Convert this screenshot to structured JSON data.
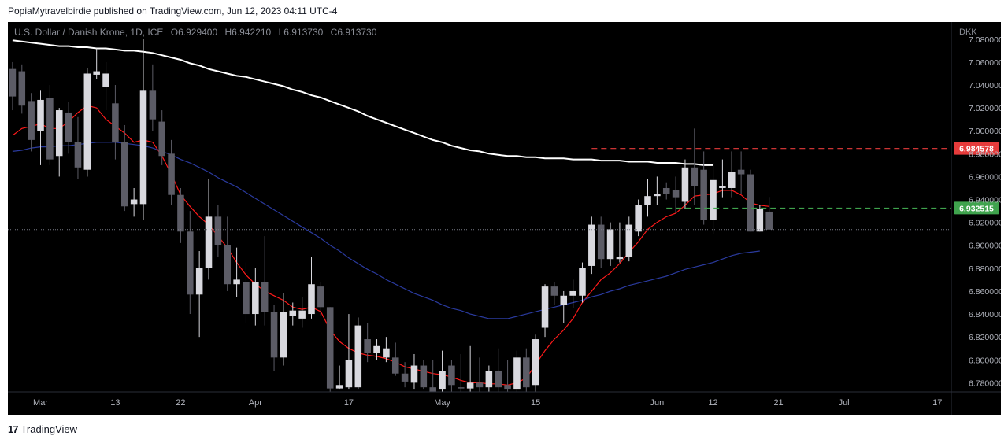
{
  "header": {
    "text": "PopiaMytravelbirdie published on TradingView.com, Jun 12, 2023 04:11 UTC-4"
  },
  "legend": {
    "symbol": "U.S. Dollar / Danish Krone, 1D, ICE",
    "o_label": "O",
    "o": "6.929400",
    "h_label": "H",
    "h": "6.942210",
    "l_label": "L",
    "l": "6.913730",
    "c_label": "C",
    "c": "6.913730"
  },
  "footer": {
    "logo_mark": "17",
    "brand": "TradingView"
  },
  "colors": {
    "background": "#000000",
    "bull": "#d9d9df",
    "bear": "#5c5c66",
    "sma_white": "#ffffff",
    "sma_red": "#ff1a1a",
    "sma_blue": "#2a3a9e",
    "resistance": "#e63b3b",
    "support": "#3fa34d"
  },
  "chart_data": {
    "type": "candlestick",
    "currency_label": "DKK",
    "y_ticks": [
      "7.080000",
      "7.060000",
      "7.040000",
      "7.020000",
      "7.000000",
      "6.980000",
      "6.960000",
      "6.940000",
      "6.920000",
      "6.900000",
      "6.880000",
      "6.860000",
      "6.840000",
      "6.820000",
      "6.800000",
      "6.780000"
    ],
    "ylim": [
      6.772,
      7.095
    ],
    "x_ticks": [
      {
        "label": "Mar",
        "index": 3
      },
      {
        "label": "13",
        "index": 11
      },
      {
        "label": "22",
        "index": 18
      },
      {
        "label": "Apr",
        "index": 26
      },
      {
        "label": "17",
        "index": 36
      },
      {
        "label": "May",
        "index": 46
      },
      {
        "label": "15",
        "index": 56
      },
      {
        "label": "Jun",
        "index": 69
      },
      {
        "label": "12",
        "index": 75
      },
      {
        "label": "21",
        "index": 82
      },
      {
        "label": "Jul",
        "index": 89
      },
      {
        "label": "17",
        "index": 99
      }
    ],
    "x_slots": 101,
    "candles": [
      {
        "o": 7.054,
        "h": 7.06,
        "l": 7.018,
        "c": 7.03
      },
      {
        "o": 7.052,
        "h": 7.058,
        "l": 7.015,
        "c": 7.022
      },
      {
        "o": 7.026,
        "h": 7.033,
        "l": 6.982,
        "c": 6.992
      },
      {
        "o": 7.0,
        "h": 7.035,
        "l": 6.97,
        "c": 7.027
      },
      {
        "o": 7.029,
        "h": 7.04,
        "l": 6.97,
        "c": 6.975
      },
      {
        "o": 6.978,
        "h": 7.02,
        "l": 6.96,
        "c": 7.018
      },
      {
        "o": 7.016,
        "h": 7.025,
        "l": 6.98,
        "c": 6.99
      },
      {
        "o": 6.99,
        "h": 7.012,
        "l": 6.958,
        "c": 6.968
      },
      {
        "o": 6.966,
        "h": 7.055,
        "l": 6.96,
        "c": 7.05
      },
      {
        "o": 7.049,
        "h": 7.072,
        "l": 7.045,
        "c": 7.052
      },
      {
        "o": 7.038,
        "h": 7.06,
        "l": 7.018,
        "c": 7.05
      },
      {
        "o": 7.024,
        "h": 7.04,
        "l": 6.975,
        "c": 6.99
      },
      {
        "o": 6.99,
        "h": 7.005,
        "l": 6.93,
        "c": 6.934
      },
      {
        "o": 6.936,
        "h": 6.95,
        "l": 6.925,
        "c": 6.94
      },
      {
        "o": 6.936,
        "h": 7.08,
        "l": 6.922,
        "c": 7.035
      },
      {
        "o": 7.035,
        "h": 7.058,
        "l": 7.0,
        "c": 7.01
      },
      {
        "o": 7.008,
        "h": 7.018,
        "l": 6.97,
        "c": 6.978
      },
      {
        "o": 6.98,
        "h": 6.992,
        "l": 6.935,
        "c": 6.944
      },
      {
        "o": 6.944,
        "h": 6.95,
        "l": 6.902,
        "c": 6.912
      },
      {
        "o": 6.912,
        "h": 6.93,
        "l": 6.84,
        "c": 6.857
      },
      {
        "o": 6.857,
        "h": 6.895,
        "l": 6.82,
        "c": 6.88
      },
      {
        "o": 6.88,
        "h": 6.958,
        "l": 6.87,
        "c": 6.925
      },
      {
        "o": 6.925,
        "h": 6.935,
        "l": 6.89,
        "c": 6.9
      },
      {
        "o": 6.9,
        "h": 6.925,
        "l": 6.86,
        "c": 6.866
      },
      {
        "o": 6.866,
        "h": 6.898,
        "l": 6.855,
        "c": 6.87
      },
      {
        "o": 6.868,
        "h": 6.885,
        "l": 6.832,
        "c": 6.84
      },
      {
        "o": 6.84,
        "h": 6.88,
        "l": 6.83,
        "c": 6.868
      },
      {
        "o": 6.868,
        "h": 6.908,
        "l": 6.83,
        "c": 6.842
      },
      {
        "o": 6.842,
        "h": 6.848,
        "l": 6.79,
        "c": 6.802
      },
      {
        "o": 6.802,
        "h": 6.858,
        "l": 6.795,
        "c": 6.842
      },
      {
        "o": 6.838,
        "h": 6.85,
        "l": 6.83,
        "c": 6.843
      },
      {
        "o": 6.836,
        "h": 6.855,
        "l": 6.828,
        "c": 6.843
      },
      {
        "o": 6.84,
        "h": 6.89,
        "l": 6.836,
        "c": 6.866
      },
      {
        "o": 6.864,
        "h": 6.868,
        "l": 6.838,
        "c": 6.846
      },
      {
        "o": 6.846,
        "h": 6.846,
        "l": 6.772,
        "c": 6.775
      },
      {
        "o": 6.775,
        "h": 6.795,
        "l": 6.774,
        "c": 6.778
      },
      {
        "o": 6.776,
        "h": 6.84,
        "l": 6.774,
        "c": 6.8
      },
      {
        "o": 6.776,
        "h": 6.837,
        "l": 6.774,
        "c": 6.83
      },
      {
        "o": 6.818,
        "h": 6.832,
        "l": 6.798,
        "c": 6.806
      },
      {
        "o": 6.806,
        "h": 6.818,
        "l": 6.8,
        "c": 6.812
      },
      {
        "o": 6.802,
        "h": 6.82,
        "l": 6.798,
        "c": 6.81
      },
      {
        "o": 6.802,
        "h": 6.815,
        "l": 6.786,
        "c": 6.788
      },
      {
        "o": 6.788,
        "h": 6.798,
        "l": 6.776,
        "c": 6.781
      },
      {
        "o": 6.78,
        "h": 6.805,
        "l": 6.774,
        "c": 6.795
      },
      {
        "o": 6.795,
        "h": 6.8,
        "l": 6.774,
        "c": 6.776
      },
      {
        "o": 6.776,
        "h": 6.8,
        "l": 6.772,
        "c": 6.772
      },
      {
        "o": 6.774,
        "h": 6.808,
        "l": 6.772,
        "c": 6.79
      },
      {
        "o": 6.795,
        "h": 6.8,
        "l": 6.772,
        "c": 6.778
      },
      {
        "o": 6.776,
        "h": 6.805,
        "l": 6.772,
        "c": 6.775
      },
      {
        "o": 6.775,
        "h": 6.812,
        "l": 6.772,
        "c": 6.78
      },
      {
        "o": 6.78,
        "h": 6.802,
        "l": 6.772,
        "c": 6.776
      },
      {
        "o": 6.776,
        "h": 6.795,
        "l": 6.772,
        "c": 6.79
      },
      {
        "o": 6.79,
        "h": 6.81,
        "l": 6.772,
        "c": 6.776
      },
      {
        "o": 6.778,
        "h": 6.8,
        "l": 6.772,
        "c": 6.774
      },
      {
        "o": 6.774,
        "h": 6.808,
        "l": 6.772,
        "c": 6.802
      },
      {
        "o": 6.802,
        "h": 6.81,
        "l": 6.772,
        "c": 6.776
      },
      {
        "o": 6.778,
        "h": 6.822,
        "l": 6.772,
        "c": 6.818
      },
      {
        "o": 6.828,
        "h": 6.866,
        "l": 6.82,
        "c": 6.864
      },
      {
        "o": 6.864,
        "h": 6.868,
        "l": 6.848,
        "c": 6.856
      },
      {
        "o": 6.848,
        "h": 6.86,
        "l": 6.832,
        "c": 6.856
      },
      {
        "o": 6.856,
        "h": 6.87,
        "l": 6.845,
        "c": 6.86
      },
      {
        "o": 6.856,
        "h": 6.885,
        "l": 6.85,
        "c": 6.88
      },
      {
        "o": 6.882,
        "h": 6.925,
        "l": 6.875,
        "c": 6.918
      },
      {
        "o": 6.918,
        "h": 6.925,
        "l": 6.88,
        "c": 6.888
      },
      {
        "o": 6.888,
        "h": 6.92,
        "l": 6.882,
        "c": 6.914
      },
      {
        "o": 6.888,
        "h": 6.92,
        "l": 6.885,
        "c": 6.89
      },
      {
        "o": 6.89,
        "h": 6.925,
        "l": 6.886,
        "c": 6.918
      },
      {
        "o": 6.912,
        "h": 6.94,
        "l": 6.908,
        "c": 6.935
      },
      {
        "o": 6.935,
        "h": 6.958,
        "l": 6.925,
        "c": 6.943
      },
      {
        "o": 6.943,
        "h": 6.96,
        "l": 6.935,
        "c": 6.945
      },
      {
        "o": 6.95,
        "h": 6.955,
        "l": 6.94,
        "c": 6.945
      },
      {
        "o": 6.948,
        "h": 6.96,
        "l": 6.928,
        "c": 6.942
      },
      {
        "o": 6.938,
        "h": 6.975,
        "l": 6.932,
        "c": 6.968
      },
      {
        "o": 6.968,
        "h": 7.002,
        "l": 6.935,
        "c": 6.952
      },
      {
        "o": 6.966,
        "h": 6.982,
        "l": 6.918,
        "c": 6.922
      },
      {
        "o": 6.922,
        "h": 6.972,
        "l": 6.91,
        "c": 6.957
      },
      {
        "o": 6.95,
        "h": 6.975,
        "l": 6.942,
        "c": 6.952
      },
      {
        "o": 6.95,
        "h": 6.982,
        "l": 6.942,
        "c": 6.964
      },
      {
        "o": 6.966,
        "h": 6.982,
        "l": 6.945,
        "c": 6.962
      },
      {
        "o": 6.962,
        "h": 6.966,
        "l": 6.912,
        "c": 6.912
      },
      {
        "o": 6.912,
        "h": 6.935,
        "l": 6.912,
        "c": 6.932
      },
      {
        "o": 6.9294,
        "h": 6.94221,
        "l": 6.91373,
        "c": 6.91373
      }
    ],
    "moving_averages": [
      {
        "color_key": "sma_white",
        "values": [
          7.079,
          7.078,
          7.077,
          7.076,
          7.075,
          7.074,
          7.074,
          7.073,
          7.073,
          7.072,
          7.072,
          7.071,
          7.07,
          7.07,
          7.069,
          7.068,
          7.066,
          7.064,
          7.062,
          7.059,
          7.057,
          7.054,
          7.052,
          7.05,
          7.048,
          7.047,
          7.045,
          7.043,
          7.041,
          7.039,
          7.036,
          7.034,
          7.031,
          7.029,
          7.026,
          7.023,
          7.02,
          7.017,
          7.013,
          7.01,
          7.007,
          7.004,
          7.001,
          6.998,
          6.995,
          6.992,
          6.99,
          6.987,
          6.985,
          6.983,
          6.982,
          6.98,
          6.979,
          6.978,
          6.978,
          6.977,
          6.977,
          6.976,
          6.976,
          6.976,
          6.975,
          6.975,
          6.975,
          6.974,
          6.974,
          6.974,
          6.973,
          6.973,
          6.973,
          6.972,
          6.972,
          6.972,
          6.971,
          6.971,
          6.97,
          6.97
        ]
      },
      {
        "color_key": "sma_red",
        "values": [
          6.996,
          7.002,
          7.004,
          7.006,
          7.002,
          7.002,
          7.008,
          7.016,
          7.022,
          7.02,
          7.01,
          7.004,
          6.998,
          6.99,
          6.992,
          6.99,
          6.978,
          6.962,
          6.944,
          6.934,
          6.925,
          6.918,
          6.908,
          6.898,
          6.885,
          6.874,
          6.866,
          6.86,
          6.856,
          6.852,
          6.846,
          6.844,
          6.846,
          6.842,
          6.826,
          6.816,
          6.81,
          6.806,
          6.804,
          6.803,
          6.801,
          6.798,
          6.794,
          6.792,
          6.79,
          6.788,
          6.787,
          6.785,
          6.782,
          6.78,
          6.78,
          6.779,
          6.779,
          6.778,
          6.78,
          6.784,
          6.796,
          6.808,
          6.818,
          6.826,
          6.836,
          6.85,
          6.86,
          6.87,
          6.876,
          6.884,
          6.894,
          6.903,
          6.914,
          6.92,
          6.925,
          6.928,
          6.935,
          6.943,
          6.944,
          6.945,
          6.948,
          6.948,
          6.944,
          6.937,
          6.935,
          6.934
        ]
      },
      {
        "color_key": "sma_blue",
        "values": [
          6.982,
          6.983,
          6.985,
          6.986,
          6.986,
          6.987,
          6.987,
          6.988,
          6.989,
          6.99,
          6.99,
          6.99,
          6.989,
          6.988,
          6.987,
          6.985,
          6.982,
          6.979,
          6.975,
          6.972,
          6.968,
          6.964,
          6.959,
          6.955,
          6.951,
          6.946,
          6.941,
          6.936,
          6.931,
          6.926,
          6.921,
          6.916,
          6.911,
          6.906,
          6.9,
          6.895,
          6.889,
          6.884,
          6.879,
          6.875,
          6.87,
          6.866,
          6.862,
          6.858,
          6.855,
          6.852,
          6.848,
          6.845,
          6.843,
          6.84,
          6.838,
          6.836,
          6.836,
          6.836,
          6.838,
          6.84,
          6.842,
          6.844,
          6.846,
          6.848,
          6.85,
          6.852,
          6.855,
          6.857,
          6.86,
          6.862,
          6.865,
          6.867,
          6.869,
          6.871,
          6.873,
          6.876,
          6.879,
          6.881,
          6.883,
          6.885,
          6.888,
          6.891,
          6.893,
          6.894,
          6.895
        ]
      }
    ],
    "levels": [
      {
        "value": 6.984578,
        "label": "6.984578",
        "color_key": "resistance",
        "from_index": 62
      },
      {
        "value": 6.932515,
        "label": "6.932515",
        "color_key": "support",
        "from_index": 70
      }
    ],
    "current_price_line": 6.91373
  }
}
